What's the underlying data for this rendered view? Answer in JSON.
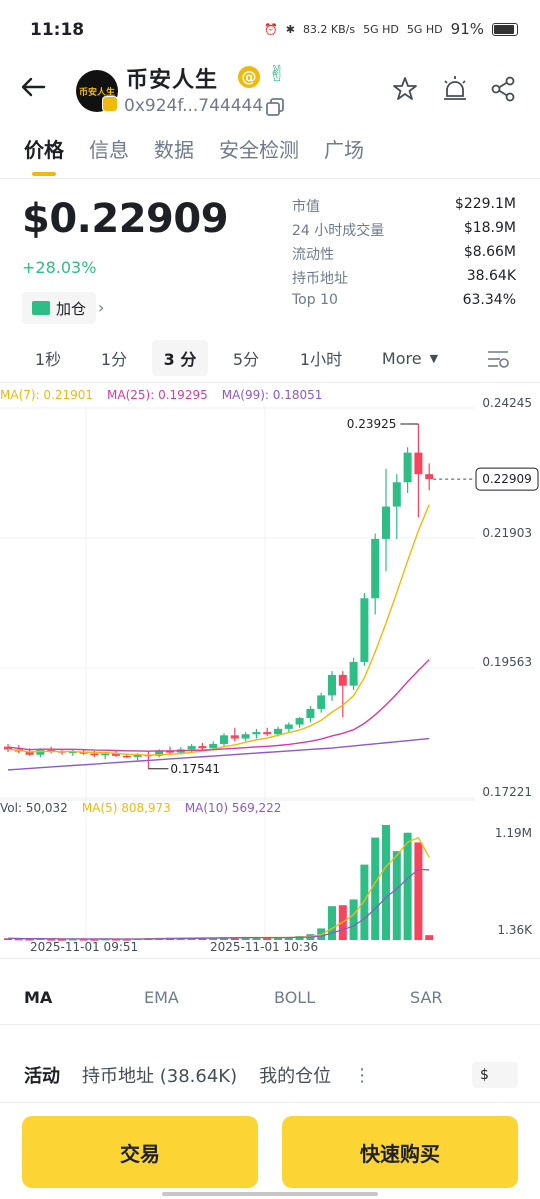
{
  "status_bar": {
    "time": "11:18",
    "net_speed": "83.2 KB/s",
    "signal1": "5G HD",
    "signal2": "5G HD",
    "battery": "91%"
  },
  "header": {
    "token_name": "币安人生",
    "logo_text": "币安人生",
    "address": "0x924f...744444"
  },
  "tabs": [
    "价格",
    "信息",
    "数据",
    "安全检测",
    "广场"
  ],
  "price": {
    "value": "$0.22909",
    "change": "+28.03%",
    "position_label": "加仓"
  },
  "stats": [
    {
      "k": "市值",
      "v": "$229.1M"
    },
    {
      "k": "24 小时成交量",
      "v": "$18.9M"
    },
    {
      "k": "流动性",
      "v": "$8.66M"
    },
    {
      "k": "持币地址",
      "v": "38.64K"
    },
    {
      "k": "Top 10",
      "v": "63.34%"
    }
  ],
  "intervals": [
    "1秒",
    "1分",
    "3 分",
    "5分",
    "1小时",
    "More"
  ],
  "ma_legend": {
    "ma7": "MA(7): 0.21901",
    "ma25": "MA(25): 0.19295",
    "ma99": "MA(99): 0.18051"
  },
  "vol_legend": {
    "vol": "Vol: 50,032",
    "ma5": "MA(5) 808,973",
    "ma10": "MA(10) 569,222"
  },
  "price_axis": [
    "0.24245",
    "0.21903",
    "0.19563",
    "0.17221"
  ],
  "current_price_tag": "0.22909",
  "high_label": "0.23925",
  "low_label": "0.17541",
  "vol_axis": [
    "1.19M",
    "1.36K"
  ],
  "time_axis": [
    "2025-11-01 09:51",
    "2025-11-01 10:36"
  ],
  "colors": {
    "up": "#2ebd85",
    "down": "#f6465d",
    "ma7": "#f0b90b",
    "ma25": "#d63ca5",
    "ma99": "#8c59c8",
    "accent": "#fcd535"
  },
  "indicators": [
    "MA",
    "EMA",
    "BOLL",
    "SAR"
  ],
  "activity": {
    "tab_activity": "活动",
    "tab_holders": "持币地址 (38.64K)",
    "tab_positions": "我的仓位",
    "currency": "$"
  },
  "buttons": {
    "trade": "交易",
    "quick_buy": "快速购买"
  },
  "chart_data": {
    "type": "candlestick",
    "ylim": [
      0.17221,
      0.24245
    ],
    "candles": [
      {
        "o": 0.1795,
        "h": 0.18,
        "l": 0.1785,
        "c": 0.179
      },
      {
        "o": 0.179,
        "h": 0.1798,
        "l": 0.1783,
        "c": 0.1786
      },
      {
        "o": 0.1786,
        "h": 0.1792,
        "l": 0.1778,
        "c": 0.178
      },
      {
        "o": 0.178,
        "h": 0.1792,
        "l": 0.1776,
        "c": 0.1789
      },
      {
        "o": 0.1789,
        "h": 0.1795,
        "l": 0.1783,
        "c": 0.1787
      },
      {
        "o": 0.1787,
        "h": 0.179,
        "l": 0.178,
        "c": 0.1784
      },
      {
        "o": 0.1784,
        "h": 0.179,
        "l": 0.1778,
        "c": 0.1786
      },
      {
        "o": 0.1786,
        "h": 0.179,
        "l": 0.178,
        "c": 0.1782
      },
      {
        "o": 0.1782,
        "h": 0.1787,
        "l": 0.1776,
        "c": 0.1779
      },
      {
        "o": 0.1779,
        "h": 0.1785,
        "l": 0.1772,
        "c": 0.1782
      },
      {
        "o": 0.1782,
        "h": 0.1788,
        "l": 0.1776,
        "c": 0.1778
      },
      {
        "o": 0.1778,
        "h": 0.1782,
        "l": 0.1774,
        "c": 0.1776
      },
      {
        "o": 0.1776,
        "h": 0.1783,
        "l": 0.177,
        "c": 0.178
      },
      {
        "o": 0.178,
        "h": 0.1786,
        "l": 0.1754,
        "c": 0.1778
      },
      {
        "o": 0.1778,
        "h": 0.179,
        "l": 0.1775,
        "c": 0.1788
      },
      {
        "o": 0.1788,
        "h": 0.1795,
        "l": 0.1781,
        "c": 0.1784
      },
      {
        "o": 0.1784,
        "h": 0.1794,
        "l": 0.178,
        "c": 0.179
      },
      {
        "o": 0.179,
        "h": 0.18,
        "l": 0.1785,
        "c": 0.1796
      },
      {
        "o": 0.1796,
        "h": 0.1802,
        "l": 0.1788,
        "c": 0.1792
      },
      {
        "o": 0.1792,
        "h": 0.1805,
        "l": 0.1788,
        "c": 0.18
      },
      {
        "o": 0.18,
        "h": 0.182,
        "l": 0.1795,
        "c": 0.1816
      },
      {
        "o": 0.1816,
        "h": 0.183,
        "l": 0.1805,
        "c": 0.181
      },
      {
        "o": 0.181,
        "h": 0.1822,
        "l": 0.1805,
        "c": 0.1818
      },
      {
        "o": 0.1818,
        "h": 0.1828,
        "l": 0.181,
        "c": 0.1822
      },
      {
        "o": 0.1822,
        "h": 0.183,
        "l": 0.1815,
        "c": 0.1818
      },
      {
        "o": 0.1818,
        "h": 0.1832,
        "l": 0.1814,
        "c": 0.1828
      },
      {
        "o": 0.1828,
        "h": 0.184,
        "l": 0.1822,
        "c": 0.1836
      },
      {
        "o": 0.1836,
        "h": 0.185,
        "l": 0.183,
        "c": 0.1848
      },
      {
        "o": 0.1848,
        "h": 0.187,
        "l": 0.184,
        "c": 0.1865
      },
      {
        "o": 0.1865,
        "h": 0.1895,
        "l": 0.1858,
        "c": 0.189
      },
      {
        "o": 0.189,
        "h": 0.1935,
        "l": 0.188,
        "c": 0.1928
      },
      {
        "o": 0.1928,
        "h": 0.1935,
        "l": 0.185,
        "c": 0.1908
      },
      {
        "o": 0.1908,
        "h": 0.196,
        "l": 0.19,
        "c": 0.1952
      },
      {
        "o": 0.1952,
        "h": 0.208,
        "l": 0.1945,
        "c": 0.207
      },
      {
        "o": 0.207,
        "h": 0.219,
        "l": 0.204,
        "c": 0.218
      },
      {
        "o": 0.218,
        "h": 0.231,
        "l": 0.212,
        "c": 0.224
      },
      {
        "o": 0.224,
        "h": 0.23,
        "l": 0.218,
        "c": 0.2285
      },
      {
        "o": 0.2285,
        "h": 0.235,
        "l": 0.2265,
        "c": 0.234
      },
      {
        "o": 0.234,
        "h": 0.2393,
        "l": 0.222,
        "c": 0.23
      },
      {
        "o": 0.23,
        "h": 0.232,
        "l": 0.227,
        "c": 0.2291
      }
    ],
    "volume_ylim": [
      0,
      1190000
    ],
    "volumes": [
      18000,
      12000,
      10000,
      15000,
      9000,
      8000,
      11000,
      9000,
      8000,
      12000,
      10000,
      9000,
      14000,
      20000,
      22000,
      25000,
      22000,
      21000,
      24000,
      26000,
      28000,
      24000,
      26000,
      25000,
      22000,
      28000,
      30000,
      40000,
      60000,
      120000,
      350000,
      360000,
      420000,
      780000,
      1060000,
      1190000,
      920000,
      1110000,
      1010000,
      50032
    ],
    "ma_series": [
      {
        "name": "MA(7)",
        "end": 0.21901
      },
      {
        "name": "MA(25)",
        "end": 0.19295
      },
      {
        "name": "MA(99)",
        "end": 0.18051
      }
    ]
  }
}
